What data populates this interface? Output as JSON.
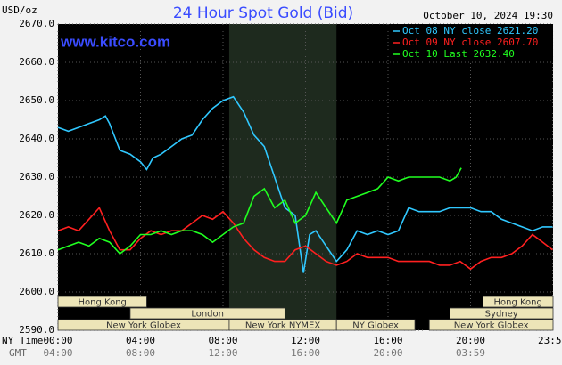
{
  "chart_data": {
    "type": "line",
    "title": "24 Hour Spot Gold (Bid)",
    "unit_label": "USD/oz",
    "timestamp": "October 10, 2024 19:30",
    "site": "www.kitco.com",
    "x_axis_label": "NY Time",
    "x2_axis_label": "GMT",
    "xlim": [
      0,
      24
    ],
    "xticks": [
      {
        "value": 0,
        "label": "00:00"
      },
      {
        "value": 4,
        "label": "04:00"
      },
      {
        "value": 8,
        "label": "08:00"
      },
      {
        "value": 12,
        "label": "12:00"
      },
      {
        "value": 16,
        "label": "16:00"
      },
      {
        "value": 20,
        "label": "20:00"
      },
      {
        "value": 23.98,
        "label": "23:59"
      }
    ],
    "gmt_labels": [
      "04:00",
      "08:00",
      "12:00",
      "16:00",
      "20:00",
      "03:59"
    ],
    "ylim": [
      2590,
      2670
    ],
    "yticks": [
      {
        "value": 2590,
        "label": "2590.0"
      },
      {
        "value": 2600,
        "label": "2600.0"
      },
      {
        "value": 2610,
        "label": "2610.0"
      },
      {
        "value": 2620,
        "label": "2620.0"
      },
      {
        "value": 2630,
        "label": "2630.0"
      },
      {
        "value": 2640,
        "label": "2640.0"
      },
      {
        "value": 2650,
        "label": "2650.0"
      },
      {
        "value": 2660,
        "label": "2660.0"
      },
      {
        "value": 2670,
        "label": "2670.0"
      }
    ],
    "grid": true,
    "legend": "top-right",
    "highlight": [
      8.3,
      13.5
    ],
    "sessions": [
      {
        "name": "Hong Kong",
        "row": 0,
        "start": 0,
        "end": 4.3
      },
      {
        "name": "Hong Kong",
        "row": 0,
        "start": 20.6,
        "end": 24
      },
      {
        "name": "London",
        "row": 1,
        "start": 3.5,
        "end": 11
      },
      {
        "name": "Sydney",
        "row": 1,
        "start": 19,
        "end": 24
      },
      {
        "name": "New York Globex",
        "row": 2,
        "start": 0,
        "end": 8.3
      },
      {
        "name": "New York NYMEX",
        "row": 2,
        "start": 8.3,
        "end": 13.5
      },
      {
        "name": "NY Globex",
        "row": 2,
        "start": 13.5,
        "end": 17.3
      },
      {
        "name": "New York Globex",
        "row": 2,
        "start": 18,
        "end": 24
      }
    ],
    "series": [
      {
        "name": "Oct 08 NY close 2621.20",
        "color": "#30c8ff",
        "x": [
          0,
          0.5,
          1,
          1.5,
          2,
          2.3,
          2.5,
          3,
          3.5,
          4,
          4.3,
          4.6,
          5,
          5.5,
          6,
          6.5,
          7,
          7.5,
          8,
          8.5,
          9,
          9.5,
          10,
          10.5,
          11,
          11.5,
          11.9,
          12.2,
          12.5,
          13,
          13.5,
          14,
          14.5,
          15,
          15.5,
          16,
          16.5,
          17,
          17.5,
          18,
          18.5,
          19,
          19.5,
          20,
          20.5,
          21,
          21.5,
          22,
          22.5,
          23,
          23.5,
          23.98
        ],
        "values": [
          2643,
          2642,
          2643,
          2644,
          2645,
          2646,
          2644,
          2637,
          2636,
          2634,
          2632,
          2635,
          2636,
          2638,
          2640,
          2641,
          2645,
          2648,
          2650,
          2651,
          2647,
          2641,
          2638,
          2630,
          2622,
          2620,
          2605,
          2615,
          2616,
          2612,
          2608,
          2611,
          2616,
          2615,
          2616,
          2615,
          2616,
          2622,
          2621,
          2621,
          2621,
          2622,
          2622,
          2622,
          2621,
          2621,
          2619,
          2618,
          2617,
          2616,
          2617,
          2617
        ]
      },
      {
        "name": "Oct 09 NY close 2607.70",
        "color": "#ff2020",
        "x": [
          0,
          0.5,
          1,
          1.5,
          2,
          2.5,
          3,
          3.5,
          4,
          4.5,
          5,
          5.5,
          6,
          6.5,
          7,
          7.5,
          8,
          8.5,
          9,
          9.5,
          10,
          10.5,
          11,
          11.5,
          12,
          12.5,
          13,
          13.5,
          14,
          14.5,
          15,
          15.5,
          16,
          16.5,
          17,
          17.5,
          18,
          18.5,
          19,
          19.5,
          20,
          20.5,
          21,
          21.5,
          22,
          22.5,
          23,
          23.5,
          23.98
        ],
        "values": [
          2616,
          2617,
          2616,
          2619,
          2622,
          2616,
          2611,
          2611,
          2614,
          2616,
          2615,
          2616,
          2616,
          2618,
          2620,
          2619,
          2621,
          2618,
          2614,
          2611,
          2609,
          2608,
          2608,
          2611,
          2612,
          2610,
          2608,
          2607,
          2608,
          2610,
          2609,
          2609,
          2609,
          2608,
          2608,
          2608,
          2608,
          2607,
          2607,
          2608,
          2606,
          2608,
          2609,
          2609,
          2610,
          2612,
          2615,
          2613,
          2611
        ]
      },
      {
        "name": "Oct 10 Last 2632.40",
        "color": "#20ff20",
        "x": [
          0,
          0.5,
          1,
          1.5,
          2,
          2.5,
          3,
          3.5,
          4,
          4.5,
          5,
          5.5,
          6,
          6.5,
          7,
          7.5,
          8,
          8.5,
          9,
          9.5,
          10,
          10.5,
          11,
          11.5,
          12,
          12.5,
          13,
          13.5,
          14,
          14.5,
          15,
          15.5,
          16,
          16.5,
          17,
          17.5,
          18,
          18.5,
          19,
          19.3,
          19.55
        ],
        "values": [
          2611,
          2612,
          2613,
          2612,
          2614,
          2613,
          2610,
          2612,
          2615,
          2615,
          2616,
          2615,
          2616,
          2616,
          2615,
          2613,
          2615,
          2617,
          2618,
          2625,
          2627,
          2622,
          2624,
          2618,
          2620,
          2626,
          2622,
          2618,
          2624,
          2625,
          2626,
          2627,
          2630,
          2629,
          2630,
          2630,
          2630,
          2630,
          2629,
          2630,
          2632.4
        ]
      }
    ]
  }
}
